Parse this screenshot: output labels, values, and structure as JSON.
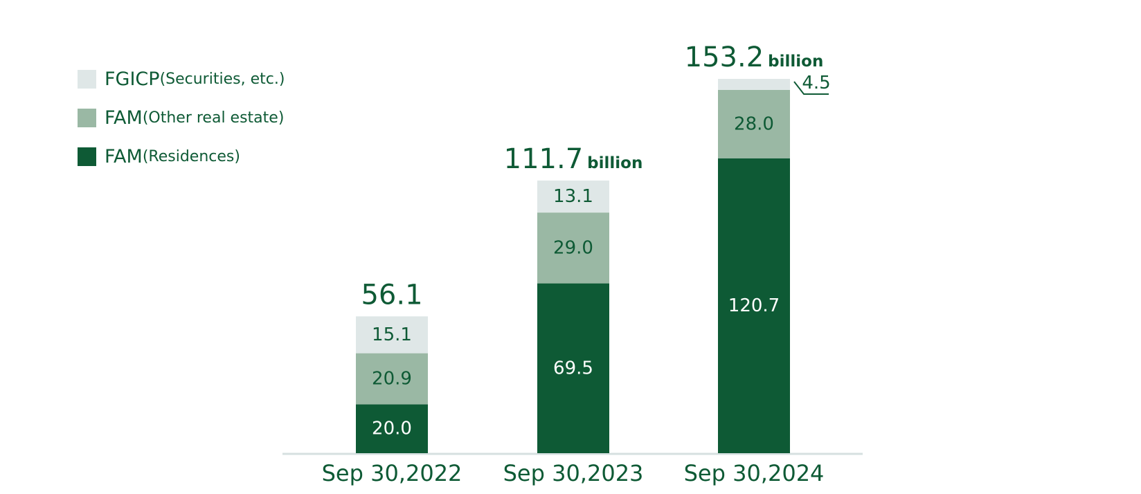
{
  "chart_data": {
    "type": "bar",
    "stacked": true,
    "categories": [
      "Sep 30,2022",
      "Sep 30,2023",
      "Sep 30,2024"
    ],
    "series": [
      {
        "name": "FAM",
        "qualifier": "(Residences)",
        "color": "#0e5a35",
        "label_color": "#ffffff",
        "values": [
          20.0,
          69.5,
          120.7
        ]
      },
      {
        "name": "FAM",
        "qualifier": "(Other real estate)",
        "color": "#9ab8a4",
        "label_color": "#0e5a35",
        "values": [
          20.9,
          29.0,
          28.0
        ]
      },
      {
        "name": "FGICP",
        "qualifier": "(Securities, etc.)",
        "color": "#dfe7e7",
        "label_color": "#0e5a35",
        "values": [
          15.1,
          13.1,
          4.5
        ]
      }
    ],
    "value_labels": [
      [
        "20.0",
        "69.5",
        "120.7"
      ],
      [
        "20.9",
        "29.0",
        "28.0"
      ],
      [
        "15.1",
        "13.1",
        "4.5"
      ]
    ],
    "totals": [
      {
        "value": "56.1",
        "unit": ""
      },
      {
        "value": "111.7",
        "unit": "billion"
      },
      {
        "value": "153.2",
        "unit": "billion"
      }
    ],
    "ylim": [
      0,
      160
    ],
    "grid": false,
    "legend_position": "top-left"
  },
  "colors": {
    "text": "#0e5a35",
    "axis": "#d6e0e0"
  }
}
